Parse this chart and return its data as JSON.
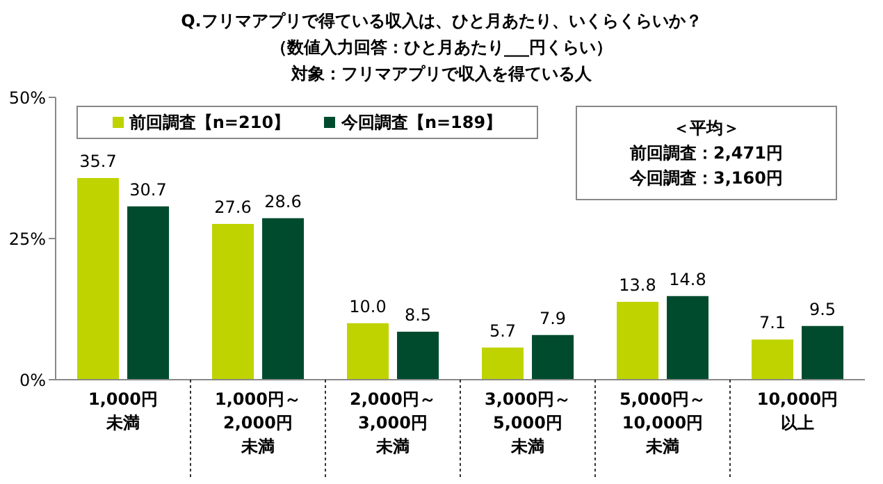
{
  "chart_data": {
    "type": "bar",
    "title": "Q.フリマアプリで得ている収入は、ひと月あたり、いくらくらいか？",
    "subtitle": "（数値入力回答：ひと月あたり___円くらい）対象：フリマアプリで収入を得ている人",
    "categories": [
      "1,000円未満",
      "1,000円～2,000円未満",
      "2,000円～3,000円未満",
      "3,000円～5,000円未満",
      "5,000円～10,000円未満",
      "10,000円以上"
    ],
    "series": [
      {
        "name": "前回調査【n=210】",
        "color": "#bfd300",
        "values": [
          35.7,
          27.6,
          10.0,
          5.7,
          13.8,
          7.1
        ],
        "value_labels": [
          "35.7",
          "27.6",
          "10.0",
          "5.7",
          "13.8",
          "7.1"
        ]
      },
      {
        "name": "今回調査【n=189】",
        "color": "#004b2e",
        "values": [
          30.7,
          28.6,
          8.5,
          7.9,
          14.8,
          9.5
        ],
        "value_labels": [
          "30.7",
          "28.6",
          "8.5",
          "7.9",
          "14.8",
          "9.5"
        ]
      }
    ],
    "ylim": [
      0,
      50
    ],
    "yticks": [
      {
        "value": 0,
        "label": "0%"
      },
      {
        "value": 25,
        "label": "25%"
      },
      {
        "value": 50,
        "label": "50%"
      }
    ],
    "legend": "top left",
    "annotations": [
      "＜平均＞",
      "前回調査：2,471円",
      "今回調査：3,160円"
    ]
  }
}
